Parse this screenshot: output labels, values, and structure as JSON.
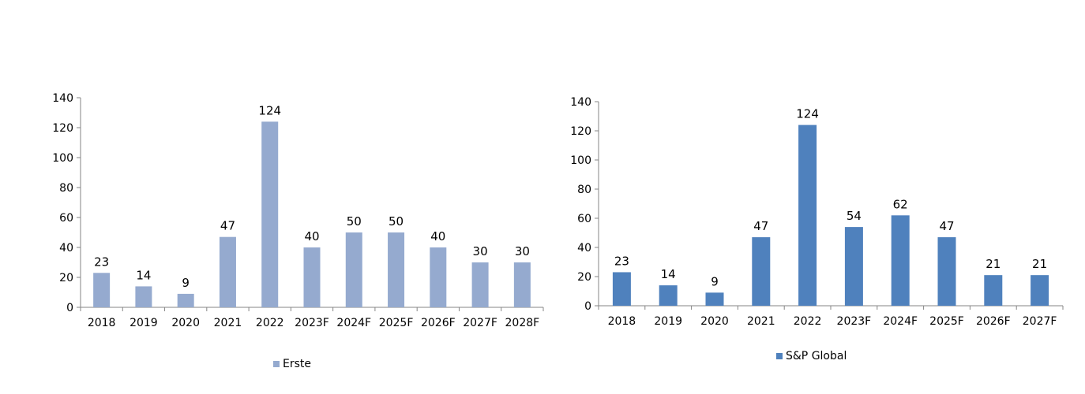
{
  "chart_data": [
    {
      "type": "bar",
      "categories": [
        "2018",
        "2019",
        "2020",
        "2021",
        "2022",
        "2023F",
        "2024F",
        "2025F",
        "2026F",
        "2027F",
        "2028F"
      ],
      "series": [
        {
          "name": "Erste",
          "values": [
            23,
            14,
            9,
            47,
            124,
            40,
            50,
            50,
            40,
            30,
            30
          ],
          "color": "#95aacf"
        }
      ],
      "data_labels": [
        "23",
        "14",
        "9",
        "47",
        "124",
        "40",
        "50",
        "50",
        "40",
        "30",
        "30"
      ],
      "yticks": [
        "0",
        "20",
        "40",
        "60",
        "80",
        "100",
        "120",
        "140"
      ],
      "ylim": [
        0,
        140
      ],
      "grid": false,
      "legend_position": "bottom-center"
    },
    {
      "type": "bar",
      "categories": [
        "2018",
        "2019",
        "2020",
        "2021",
        "2022",
        "2023F",
        "2024F",
        "2025F",
        "2026F",
        "2027F"
      ],
      "series": [
        {
          "name": "S&P Global",
          "values": [
            23,
            14,
            9,
            47,
            124,
            54,
            62,
            47,
            21,
            21
          ],
          "color": "#4f81bd"
        }
      ],
      "data_labels": [
        "23",
        "14",
        "9",
        "47",
        "124",
        "54",
        "62",
        "47",
        "21",
        "21"
      ],
      "yticks": [
        "0",
        "20",
        "40",
        "60",
        "80",
        "100",
        "120",
        "140"
      ],
      "ylim": [
        0,
        140
      ],
      "grid": false,
      "legend_position": "bottom-center"
    }
  ]
}
